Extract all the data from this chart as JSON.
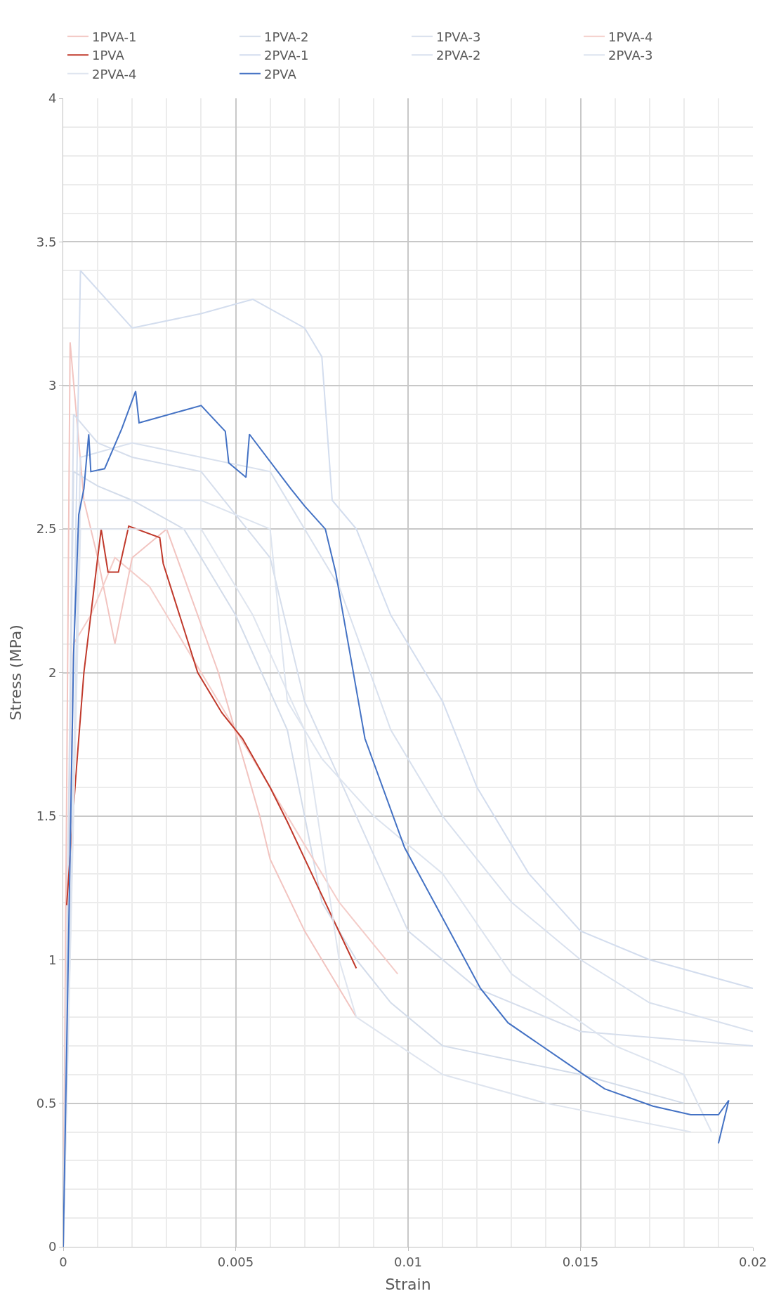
{
  "chart_data": {
    "type": "line",
    "xlabel": "Strain",
    "ylabel": "Stress (MPa)",
    "xlim": [
      0,
      0.02
    ],
    "xticks": [
      0,
      0.005,
      0.01,
      0.015,
      0.02
    ],
    "ylim": [
      0,
      4
    ],
    "yticks": [
      0,
      0.5,
      1,
      1.5,
      2,
      2.5,
      3,
      3.5,
      4
    ],
    "grid": true,
    "legend": "top",
    "marker": "none",
    "line_style": "solid",
    "series": [
      {
        "name": "1PVA-1",
        "color": "#f2c4c0",
        "x": [
          0,
          0.0002,
          0.0006,
          0.001,
          0.0015,
          0.002,
          0.003,
          0.0045,
          0.0057,
          0.006,
          0.007,
          0.0085
        ],
        "values": [
          0,
          3.15,
          2.6,
          2.4,
          2.1,
          2.4,
          2.5,
          2.0,
          1.5,
          1.35,
          1.1,
          0.8
        ]
      },
      {
        "name": "1PVA-2",
        "color": "#d3dcea",
        "x": [
          0,
          0.0003,
          0.001,
          0.002,
          0.0035,
          0.005,
          0.0065,
          0.0075,
          0.0085,
          0.0095,
          0.011,
          0.015,
          0.018
        ],
        "values": [
          0,
          2.7,
          2.65,
          2.6,
          2.5,
          2.2,
          1.8,
          1.2,
          1.0,
          0.85,
          0.7,
          0.6,
          0.5
        ]
      },
      {
        "name": "1PVA-3",
        "color": "#d6deec",
        "x": [
          0,
          0.0003,
          0.001,
          0.002,
          0.004,
          0.006,
          0.007,
          0.0085,
          0.01,
          0.012,
          0.015,
          0.02
        ],
        "values": [
          0,
          2.9,
          2.8,
          2.75,
          2.7,
          2.4,
          1.9,
          1.5,
          1.1,
          0.9,
          0.75,
          0.7
        ]
      },
      {
        "name": "1PVA-4",
        "color": "#f4cdc9",
        "x": [
          0,
          0.0003,
          0.0008,
          0.0015,
          0.0025,
          0.0035,
          0.005,
          0.0065,
          0.008,
          0.0097
        ],
        "values": [
          0,
          2.1,
          2.2,
          2.4,
          2.3,
          2.1,
          1.8,
          1.5,
          1.2,
          0.95
        ]
      },
      {
        "name": "1PVA",
        "color": "#c0392b",
        "x": [
          0.0001,
          0.00036,
          0.0006,
          0.0011,
          0.0013,
          0.0016,
          0.0019,
          0.0028,
          0.0029,
          0.0039,
          0.0046,
          0.0052,
          0.006,
          0.0065,
          0.0074,
          0.0085
        ],
        "values": [
          1.19,
          1.63,
          2.0,
          2.5,
          2.35,
          2.35,
          2.51,
          2.47,
          2.38,
          2.0,
          1.86,
          1.77,
          1.6,
          1.48,
          1.25,
          0.97
        ]
      },
      {
        "name": "2PVA-1",
        "color": "#d3ddee",
        "x": [
          0,
          0.0005,
          0.002,
          0.004,
          0.0055,
          0.007,
          0.0075,
          0.0078,
          0.0085,
          0.0095,
          0.011,
          0.012,
          0.0135,
          0.015,
          0.017,
          0.02
        ],
        "values": [
          0,
          3.4,
          3.2,
          3.25,
          3.3,
          3.2,
          3.1,
          2.6,
          2.5,
          2.2,
          1.9,
          1.6,
          1.3,
          1.1,
          1.0,
          0.9
        ]
      },
      {
        "name": "2PVA-2",
        "color": "#d9e1ee",
        "x": [
          0,
          0.0005,
          0.002,
          0.004,
          0.006,
          0.007,
          0.008,
          0.0095,
          0.011,
          0.013,
          0.015,
          0.017,
          0.02
        ],
        "values": [
          0,
          2.75,
          2.8,
          2.75,
          2.7,
          2.5,
          2.3,
          1.8,
          1.5,
          1.2,
          1.0,
          0.85,
          0.75
        ]
      },
      {
        "name": "2PVA-3",
        "color": "#dde4ef",
        "x": [
          0,
          0.0005,
          0.002,
          0.004,
          0.006,
          0.0065,
          0.0075,
          0.009,
          0.011,
          0.013,
          0.016,
          0.018,
          0.0188
        ],
        "values": [
          0,
          2.6,
          2.6,
          2.6,
          2.5,
          1.9,
          1.7,
          1.5,
          1.3,
          0.95,
          0.7,
          0.6,
          0.4
        ]
      },
      {
        "name": "2PVA-4",
        "color": "#dfe5ef",
        "x": [
          0,
          0.0005,
          0.002,
          0.004,
          0.0055,
          0.007,
          0.0075,
          0.008,
          0.0085,
          0.011,
          0.014,
          0.0182
        ],
        "values": [
          0,
          2.5,
          2.5,
          2.5,
          2.2,
          1.8,
          1.4,
          1.0,
          0.8,
          0.6,
          0.5,
          0.4
        ]
      },
      {
        "name": "2PVA",
        "color": "#4472c4",
        "x": [
          0,
          0.0003,
          0.00045,
          0.0006,
          0.00074,
          0.0008,
          0.0012,
          0.0017,
          0.0021,
          0.0022,
          0.0028,
          0.004,
          0.0047,
          0.0048,
          0.0053,
          0.0054,
          0.0066,
          0.007,
          0.0076,
          0.0079,
          0.00875,
          0.0099,
          0.0108,
          0.0121,
          0.0129,
          0.0146,
          0.0157,
          0.0171,
          0.0182,
          0.019,
          0.0193,
          0.019
        ],
        "values": [
          0,
          2.06,
          2.55,
          2.64,
          2.83,
          2.7,
          2.71,
          2.85,
          2.98,
          2.87,
          2.89,
          2.93,
          2.84,
          2.73,
          2.68,
          2.83,
          2.64,
          2.58,
          2.5,
          2.35,
          1.77,
          1.39,
          1.19,
          0.9,
          0.78,
          0.64,
          0.55,
          0.49,
          0.46,
          0.46,
          0.51,
          0.36
        ]
      }
    ]
  }
}
